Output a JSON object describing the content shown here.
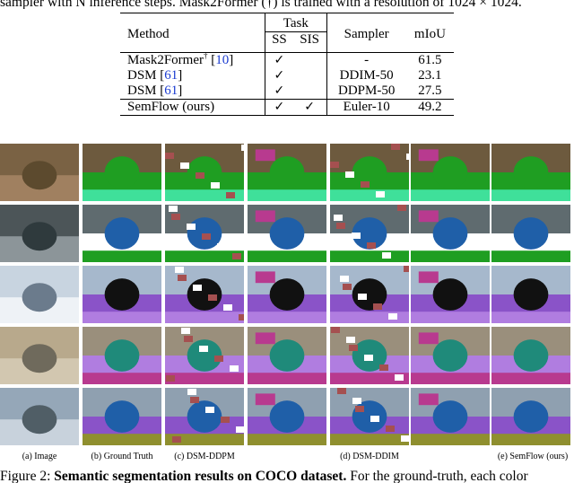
{
  "top_caption": "sampler with N inference steps. Mask2Former (†) is trained with a resolution of 1024 × 1024.",
  "table": {
    "headers": {
      "method": "Method",
      "task": "Task",
      "ss": "SS",
      "sis": "SIS",
      "sampler": "Sampler",
      "miou": "mIoU"
    },
    "rows": [
      {
        "method": "Mask2Former",
        "dagger": "†",
        "ref": "10",
        "ss": "✓",
        "sis": "",
        "sampler": "-",
        "miou": "61.5"
      },
      {
        "method": "DSM",
        "dagger": "",
        "ref": "61",
        "ss": "✓",
        "sis": "",
        "sampler": "DDIM-50",
        "miou": "23.1"
      },
      {
        "method": "DSM",
        "dagger": "",
        "ref": "61",
        "ss": "✓",
        "sis": "",
        "sampler": "DDPM-50",
        "miou": "27.5"
      },
      {
        "method": "SemFlow (ours)",
        "dagger": "",
        "ref": "",
        "ss": "✓",
        "sis": "✓",
        "sampler": "Euler-10",
        "miou": "49.2"
      }
    ]
  },
  "figure": {
    "column_labels": [
      "(a) Image",
      "(b) Ground Truth",
      "(c) DSM-DDPM",
      "(d) DSM-DDIM",
      "(e) SemFlow (ours)"
    ],
    "caption_prefix": "Figure 2: ",
    "caption_bold": "Semantic segmentation results on COCO dataset.",
    "caption_rest": " For the ground-truth, each color"
  },
  "colors": {
    "green": "#1f9e22",
    "teal": "#3fe09a",
    "purple": "#8a53c8",
    "light_purple": "#b07de0",
    "magenta": "#b83a8f",
    "dark_teal": "#1f8a7a",
    "blue": "#1f5fa8",
    "olive": "#8f8f2f",
    "brick": "#a55050"
  }
}
